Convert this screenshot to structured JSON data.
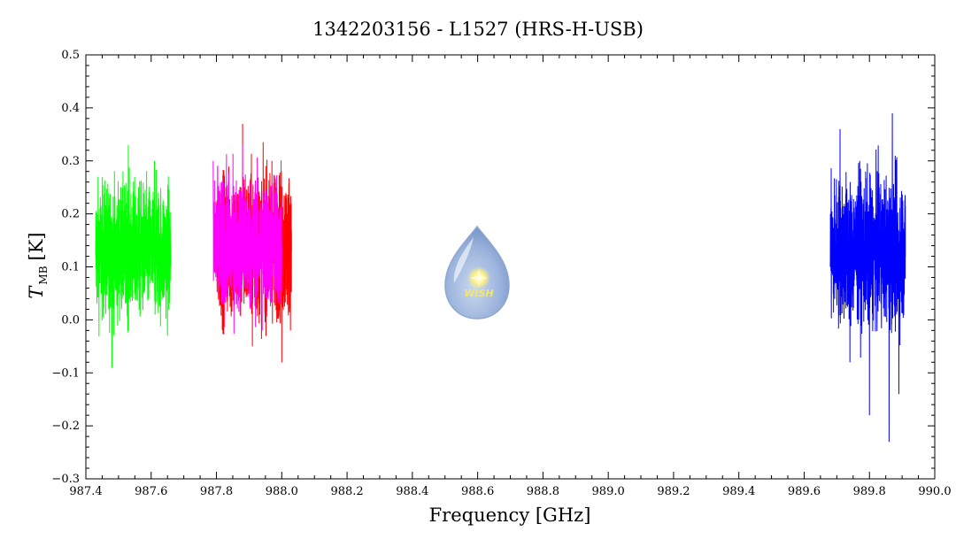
{
  "chart_data": {
    "type": "line",
    "title": "1342203156 - L1527 (HRS-H-USB)",
    "xlabel": "Frequency [GHz]",
    "ylabel_main": "T",
    "ylabel_sub": "MB",
    "ylabel_unit": "[K]",
    "xlim": [
      987.4,
      990.0
    ],
    "ylim": [
      -0.3,
      0.5
    ],
    "xticks": [
      "987.4",
      "987.6",
      "987.8",
      "988.0",
      "988.2",
      "988.4",
      "988.6",
      "988.8",
      "989.0",
      "989.2",
      "989.4",
      "989.6",
      "989.8",
      "990.0"
    ],
    "yticks": [
      "0.5",
      "0.4",
      "0.3",
      "0.2",
      "0.1",
      "0.0",
      "−0.1",
      "−0.2",
      "−0.3"
    ],
    "grid": false,
    "logo_text": "WISH",
    "series": [
      {
        "color": "#00ff00",
        "x": [
          987.43,
          987.45,
          987.47,
          987.48,
          987.49,
          987.51,
          987.53,
          987.55,
          987.57,
          987.59,
          987.61,
          987.63,
          987.65,
          987.66
        ],
        "y": [
          0.12,
          0.15,
          0.02,
          -0.09,
          0.16,
          0.1,
          0.33,
          0.05,
          0.2,
          0.12,
          0.3,
          0.08,
          -0.03,
          0.1
        ],
        "center": 0.13,
        "noise": 0.11
      },
      {
        "color": "#ff0000",
        "x": [
          987.8,
          987.83,
          987.86,
          987.88,
          987.91,
          987.94,
          987.97,
          988.0,
          988.03
        ],
        "y": [
          0.14,
          0.25,
          0.05,
          0.37,
          -0.05,
          0.2,
          0.3,
          -0.08,
          0.13
        ],
        "center": 0.14,
        "noise": 0.12
      },
      {
        "color": "#ff00ff",
        "x": [
          987.79,
          987.82,
          987.85,
          987.88,
          987.91,
          987.94,
          987.97,
          988.0
        ],
        "y": [
          0.3,
          0.05,
          0.22,
          0.33,
          0.1,
          -0.02,
          0.25,
          0.14
        ],
        "center": 0.14,
        "noise": 0.11
      },
      {
        "color": "#0000ff",
        "x": [
          989.68,
          989.71,
          989.74,
          989.77,
          989.8,
          989.83,
          989.86,
          989.87,
          989.89,
          989.91
        ],
        "y": [
          0.1,
          0.36,
          -0.08,
          0.3,
          -0.18,
          0.25,
          -0.23,
          0.39,
          -0.14,
          0.12
        ],
        "center": 0.13,
        "noise": 0.12
      }
    ]
  }
}
